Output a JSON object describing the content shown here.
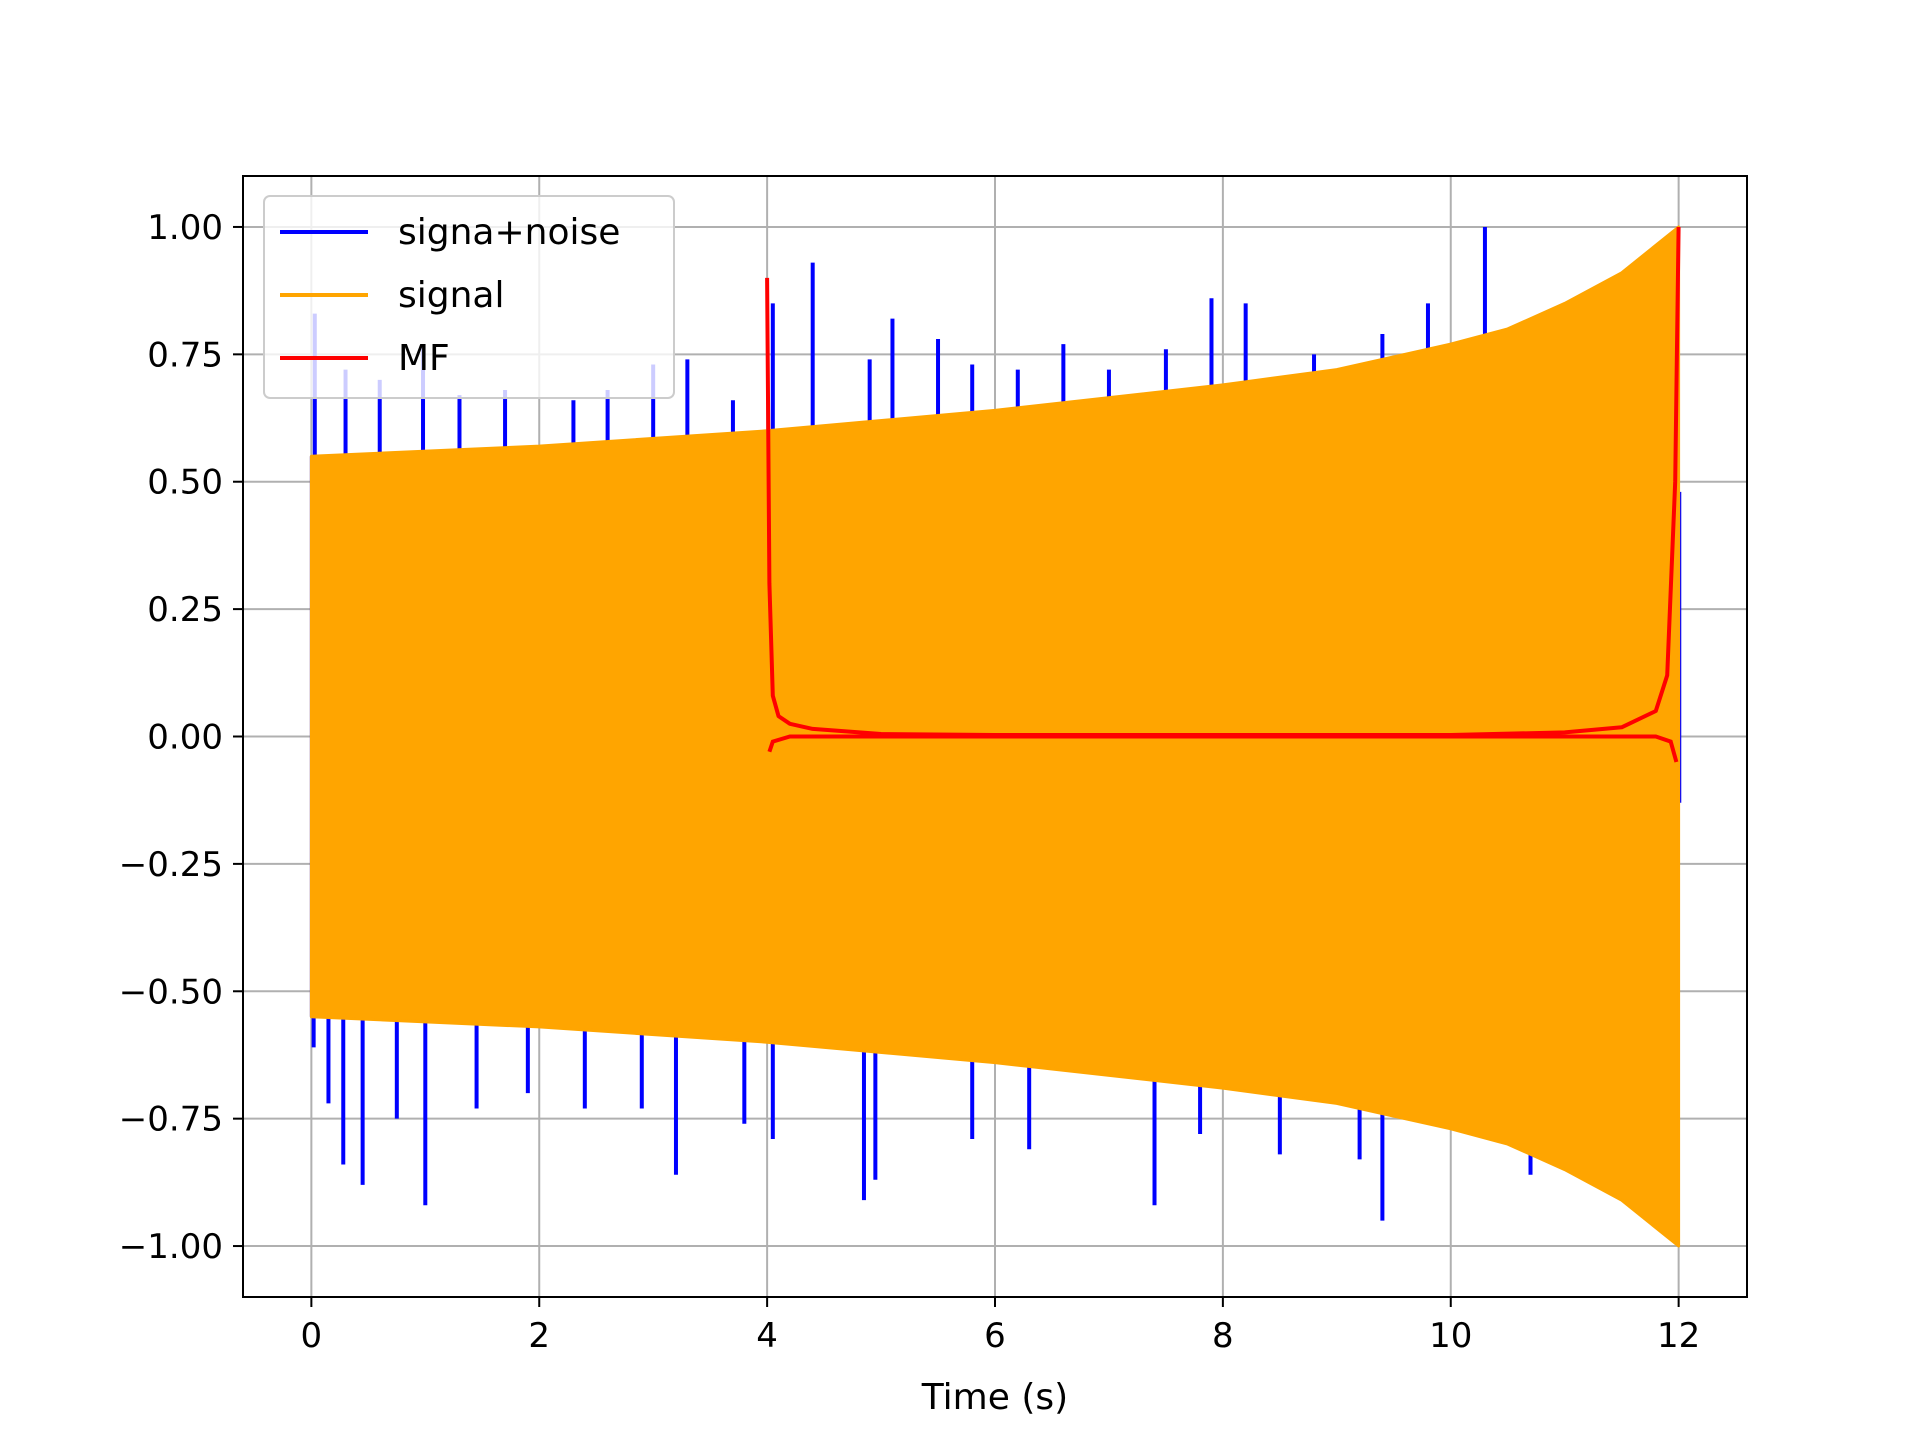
{
  "chart_data": {
    "type": "line",
    "title": "",
    "xlabel": "Time (s)",
    "ylabel": "",
    "xlim": [
      -0.6,
      12.6
    ],
    "ylim": [
      -1.1,
      1.1
    ],
    "xticks": [
      0,
      2,
      4,
      6,
      8,
      10,
      12
    ],
    "xtick_labels": [
      "0",
      "2",
      "4",
      "6",
      "8",
      "10",
      "12"
    ],
    "yticks": [
      1.0,
      0.75,
      0.5,
      0.25,
      0.0,
      -0.25,
      -0.5,
      -0.75,
      -1.0
    ],
    "ytick_labels": [
      "1.00",
      "0.75",
      "0.50",
      "0.25",
      "0.00",
      "−0.25",
      "−0.50",
      "−0.75",
      "−1.00"
    ],
    "grid": true,
    "legend_position": "top-left",
    "series": [
      {
        "name": "signa+noise",
        "color": "#0000ff",
        "description_points": {
          "spikes_up": [
            [
              0.03,
              0.83
            ],
            [
              0.3,
              0.72
            ],
            [
              0.6,
              0.7
            ],
            [
              0.98,
              0.77
            ],
            [
              1.3,
              0.67
            ],
            [
              1.7,
              0.68
            ],
            [
              2.3,
              0.66
            ],
            [
              2.6,
              0.68
            ],
            [
              3.0,
              0.73
            ],
            [
              3.3,
              0.74
            ],
            [
              3.7,
              0.66
            ],
            [
              4.05,
              0.85
            ],
            [
              4.4,
              0.93
            ],
            [
              4.9,
              0.74
            ],
            [
              5.1,
              0.82
            ],
            [
              5.5,
              0.78
            ],
            [
              5.8,
              0.73
            ],
            [
              6.2,
              0.72
            ],
            [
              6.6,
              0.77
            ],
            [
              7.0,
              0.72
            ],
            [
              7.5,
              0.76
            ],
            [
              7.9,
              0.86
            ],
            [
              8.2,
              0.85
            ],
            [
              8.8,
              0.75
            ],
            [
              9.4,
              0.79
            ],
            [
              9.8,
              0.85
            ],
            [
              10.3,
              1.0
            ]
          ],
          "spikes_down": [
            [
              0.02,
              -0.61
            ],
            [
              0.15,
              -0.72
            ],
            [
              0.28,
              -0.84
            ],
            [
              0.45,
              -0.88
            ],
            [
              0.75,
              -0.75
            ],
            [
              1.0,
              -0.92
            ],
            [
              1.45,
              -0.73
            ],
            [
              1.9,
              -0.7
            ],
            [
              2.4,
              -0.73
            ],
            [
              2.9,
              -0.73
            ],
            [
              3.2,
              -0.86
            ],
            [
              3.8,
              -0.76
            ],
            [
              4.05,
              -0.79
            ],
            [
              4.85,
              -0.91
            ],
            [
              4.95,
              -0.87
            ],
            [
              5.8,
              -0.79
            ],
            [
              6.3,
              -0.81
            ],
            [
              7.4,
              -0.92
            ],
            [
              7.8,
              -0.78
            ],
            [
              8.5,
              -0.82
            ],
            [
              9.2,
              -0.83
            ],
            [
              9.4,
              -0.95
            ],
            [
              10.7,
              -0.86
            ]
          ]
        }
      },
      {
        "name": "signal",
        "color": "#ffa500",
        "envelope": {
          "t": [
            0,
            2,
            4,
            6,
            8,
            9,
            10,
            10.5,
            11,
            11.5,
            12
          ],
          "amplitude": [
            0.55,
            0.57,
            0.6,
            0.64,
            0.69,
            0.72,
            0.77,
            0.8,
            0.85,
            0.91,
            1.0
          ]
        }
      },
      {
        "name": "MF",
        "color": "#ff0000",
        "points": {
          "t": [
            4.0,
            4.02,
            4.05,
            4.1,
            4.2,
            4.4,
            5.0,
            6.0,
            8.0,
            10.0,
            11.0,
            11.5,
            11.8,
            11.9,
            11.97,
            12.0
          ],
          "y": [
            0.9,
            0.3,
            0.08,
            0.04,
            0.025,
            0.015,
            0.005,
            0.003,
            0.003,
            0.003,
            0.008,
            0.018,
            0.05,
            0.12,
            0.5,
            1.0
          ]
        }
      }
    ]
  }
}
